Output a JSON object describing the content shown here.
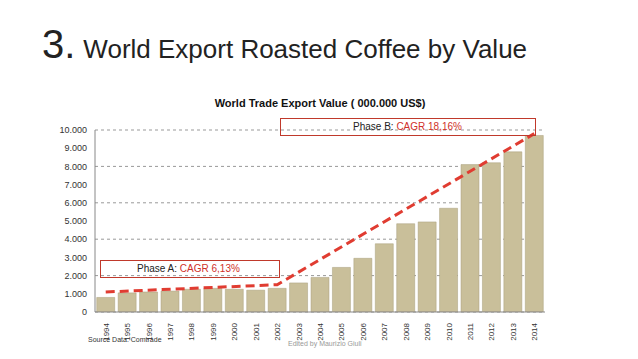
{
  "chart_data": {
    "type": "bar",
    "slide_title_number": "3.",
    "slide_title": "World Export Roasted Coffee by Value",
    "title": "World Trade Export Value ( 000.000 US$)",
    "source": "Source Data: Comtrade",
    "credit": "Edited by Maurizio Giuli",
    "categories": [
      "1994",
      "1995",
      "1996",
      "1997",
      "1998",
      "1999",
      "2000",
      "2001",
      "2002",
      "2003",
      "2004",
      "2005",
      "2006",
      "2007",
      "2008",
      "2009",
      "2010",
      "2011",
      "2012",
      "2013",
      "2014"
    ],
    "series": [
      {
        "type": "bar",
        "color": "#c9bf9a",
        "values": [
          800,
          1050,
          1100,
          1150,
          1250,
          1300,
          1250,
          1200,
          1300,
          1600,
          1900,
          2450,
          2950,
          3750,
          4850,
          4950,
          5700,
          8100,
          8200,
          8800,
          9700
        ]
      },
      {
        "type": "line",
        "color": "#e03c31",
        "line_style": "dashed",
        "values": [
          1100,
          null,
          null,
          null,
          null,
          null,
          null,
          null,
          1500,
          null,
          null,
          null,
          null,
          null,
          null,
          null,
          null,
          null,
          null,
          null,
          9800
        ]
      }
    ],
    "ylim": [
      0,
      10000
    ],
    "yticks": [
      {
        "value": 0,
        "label": "0"
      },
      {
        "value": 1000,
        "label": "1.000"
      },
      {
        "value": 2000,
        "label": "2.000"
      },
      {
        "value": 3000,
        "label": "3.000"
      },
      {
        "value": 4000,
        "label": "4.000"
      },
      {
        "value": 5000,
        "label": "5.000"
      },
      {
        "value": 6000,
        "label": "6.000"
      },
      {
        "value": 7000,
        "label": "7.000"
      },
      {
        "value": 8000,
        "label": "8.000"
      },
      {
        "value": 9000,
        "label": "9.000"
      },
      {
        "value": 10000,
        "label": "10.000"
      }
    ],
    "grid": true,
    "annotations": [
      {
        "text": "Phase A:",
        "value": "CAGR 6,13%"
      },
      {
        "text": "Phase B:",
        "value": "CAGR 18,16%"
      }
    ]
  }
}
